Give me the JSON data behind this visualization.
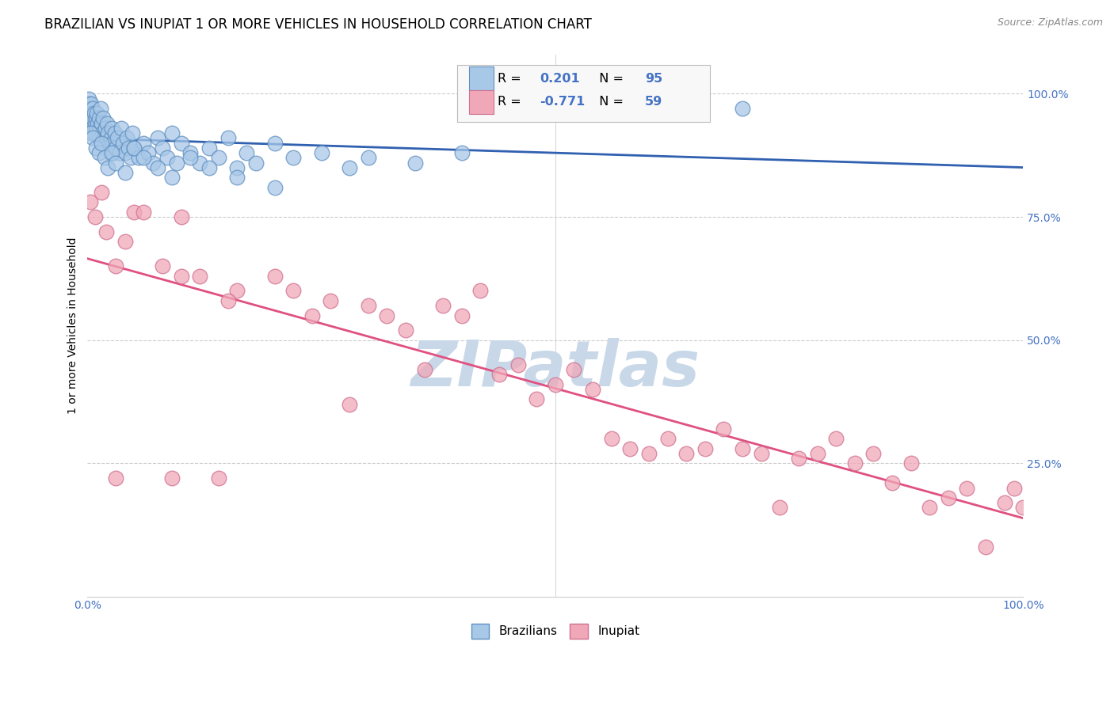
{
  "title": "BRAZILIAN VS INUPIAT 1 OR MORE VEHICLES IN HOUSEHOLD CORRELATION CHART",
  "source": "Source: ZipAtlas.com",
  "ylabel": "1 or more Vehicles in Household",
  "xlim": [
    0.0,
    1.0
  ],
  "ylim": [
    -0.02,
    1.08
  ],
  "R_brazilian": 0.201,
  "N_brazilian": 95,
  "R_inupiat": -0.771,
  "N_inupiat": 59,
  "brazilian_color": "#A8C8E8",
  "brazilian_edge": "#6090C0",
  "inupiat_color": "#F0A8B8",
  "inupiat_edge": "#D07090",
  "trendline_brazilian_color": "#3060B0",
  "trendline_inupiat_color": "#E05080",
  "watermark": "ZIPatlas",
  "watermark_color": "#C8D8E8",
  "background_color": "#FFFFFF",
  "grid_color": "#CCCCCC",
  "title_fontsize": 12,
  "axis_label_fontsize": 10,
  "tick_fontsize": 10,
  "legend_fontsize": 11,
  "source_fontsize": 9,
  "brazilians_scatter_x": [
    0.001,
    0.002,
    0.002,
    0.003,
    0.003,
    0.004,
    0.004,
    0.005,
    0.005,
    0.005,
    0.006,
    0.006,
    0.007,
    0.007,
    0.008,
    0.008,
    0.009,
    0.01,
    0.01,
    0.011,
    0.012,
    0.012,
    0.013,
    0.014,
    0.015,
    0.016,
    0.017,
    0.018,
    0.019,
    0.02,
    0.021,
    0.022,
    0.023,
    0.024,
    0.025,
    0.026,
    0.027,
    0.028,
    0.029,
    0.03,
    0.032,
    0.034,
    0.036,
    0.038,
    0.04,
    0.042,
    0.044,
    0.046,
    0.048,
    0.05,
    0.055,
    0.06,
    0.065,
    0.07,
    0.075,
    0.08,
    0.085,
    0.09,
    0.095,
    0.1,
    0.11,
    0.12,
    0.13,
    0.14,
    0.15,
    0.16,
    0.17,
    0.18,
    0.2,
    0.22,
    0.25,
    0.28,
    0.3,
    0.35,
    0.4,
    0.003,
    0.006,
    0.009,
    0.012,
    0.015,
    0.018,
    0.022,
    0.026,
    0.03,
    0.04,
    0.05,
    0.06,
    0.075,
    0.09,
    0.11,
    0.13,
    0.16,
    0.2,
    0.6,
    0.7
  ],
  "brazilians_scatter_y": [
    0.99,
    0.97,
    0.98,
    0.96,
    0.95,
    0.97,
    0.98,
    0.94,
    0.96,
    0.93,
    0.95,
    0.97,
    0.93,
    0.96,
    0.94,
    0.92,
    0.95,
    0.93,
    0.96,
    0.94,
    0.91,
    0.95,
    0.93,
    0.97,
    0.94,
    0.92,
    0.95,
    0.9,
    0.93,
    0.91,
    0.94,
    0.92,
    0.9,
    0.88,
    0.91,
    0.93,
    0.9,
    0.88,
    0.92,
    0.89,
    0.91,
    0.88,
    0.93,
    0.9,
    0.88,
    0.91,
    0.89,
    0.87,
    0.92,
    0.89,
    0.87,
    0.9,
    0.88,
    0.86,
    0.91,
    0.89,
    0.87,
    0.92,
    0.86,
    0.9,
    0.88,
    0.86,
    0.89,
    0.87,
    0.91,
    0.85,
    0.88,
    0.86,
    0.9,
    0.87,
    0.88,
    0.85,
    0.87,
    0.86,
    0.88,
    0.92,
    0.91,
    0.89,
    0.88,
    0.9,
    0.87,
    0.85,
    0.88,
    0.86,
    0.84,
    0.89,
    0.87,
    0.85,
    0.83,
    0.87,
    0.85,
    0.83,
    0.81,
    0.99,
    0.97
  ],
  "inupiat_scatter_x": [
    0.003,
    0.008,
    0.015,
    0.02,
    0.03,
    0.04,
    0.05,
    0.06,
    0.08,
    0.1,
    0.1,
    0.12,
    0.14,
    0.16,
    0.2,
    0.22,
    0.24,
    0.26,
    0.3,
    0.32,
    0.34,
    0.36,
    0.38,
    0.4,
    0.42,
    0.44,
    0.46,
    0.48,
    0.5,
    0.52,
    0.54,
    0.56,
    0.58,
    0.6,
    0.62,
    0.64,
    0.66,
    0.68,
    0.7,
    0.72,
    0.74,
    0.76,
    0.78,
    0.8,
    0.82,
    0.84,
    0.86,
    0.88,
    0.9,
    0.92,
    0.94,
    0.96,
    0.98,
    0.99,
    1.0,
    0.03,
    0.09,
    0.15,
    0.28
  ],
  "inupiat_scatter_y": [
    0.78,
    0.75,
    0.8,
    0.72,
    0.65,
    0.7,
    0.76,
    0.76,
    0.65,
    0.63,
    0.75,
    0.63,
    0.22,
    0.6,
    0.63,
    0.6,
    0.55,
    0.58,
    0.57,
    0.55,
    0.52,
    0.44,
    0.57,
    0.55,
    0.6,
    0.43,
    0.45,
    0.38,
    0.41,
    0.44,
    0.4,
    0.3,
    0.28,
    0.27,
    0.3,
    0.27,
    0.28,
    0.32,
    0.28,
    0.27,
    0.16,
    0.26,
    0.27,
    0.3,
    0.25,
    0.27,
    0.21,
    0.25,
    0.16,
    0.18,
    0.2,
    0.08,
    0.17,
    0.2,
    0.16,
    0.22,
    0.22,
    0.58,
    0.37
  ]
}
